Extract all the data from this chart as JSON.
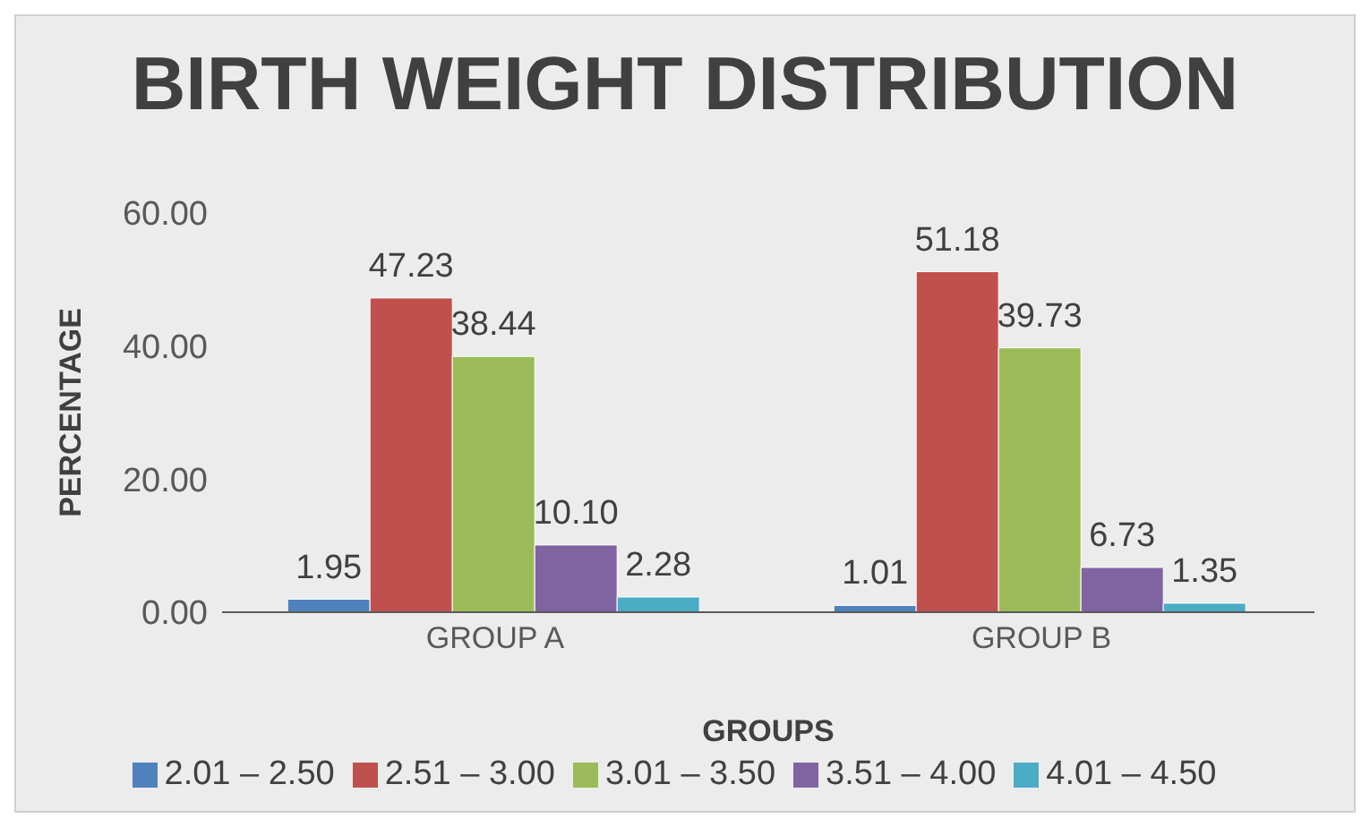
{
  "chart_data": {
    "type": "bar",
    "title": "BIRTH WEIGHT DISTRIBUTION",
    "xlabel": "GROUPS",
    "ylabel": "PERCENTAGE",
    "categories": [
      "GROUP A",
      "GROUP B"
    ],
    "series": [
      {
        "name": "2.01 – 2.50",
        "color": "#4f81bd",
        "values": [
          1.95,
          1.01
        ],
        "value_labels": [
          "1.95",
          "1.01"
        ]
      },
      {
        "name": "2.51 – 3.00",
        "color": "#c0504d",
        "values": [
          47.23,
          51.18
        ],
        "value_labels": [
          "47.23",
          "51.18"
        ]
      },
      {
        "name": "3.01 – 3.50",
        "color": "#9bbb59",
        "values": [
          38.44,
          39.73
        ],
        "value_labels": [
          "38.44",
          "39.73"
        ]
      },
      {
        "name": "3.51 – 4.00",
        "color": "#8064a2",
        "values": [
          10.1,
          6.73
        ],
        "value_labels": [
          "10.10",
          "6.73"
        ]
      },
      {
        "name": "4.01 – 4.50",
        "color": "#4bacc6",
        "values": [
          2.28,
          1.35
        ],
        "value_labels": [
          "2.28",
          "1.35"
        ]
      }
    ],
    "ylim": [
      0,
      60
    ],
    "yticks": [
      {
        "value": 0,
        "label": "0.00"
      },
      {
        "value": 20,
        "label": "20.00"
      },
      {
        "value": 40,
        "label": "40.00"
      },
      {
        "value": 60,
        "label": "60.00"
      }
    ],
    "grid": false,
    "legend": "bottom"
  }
}
